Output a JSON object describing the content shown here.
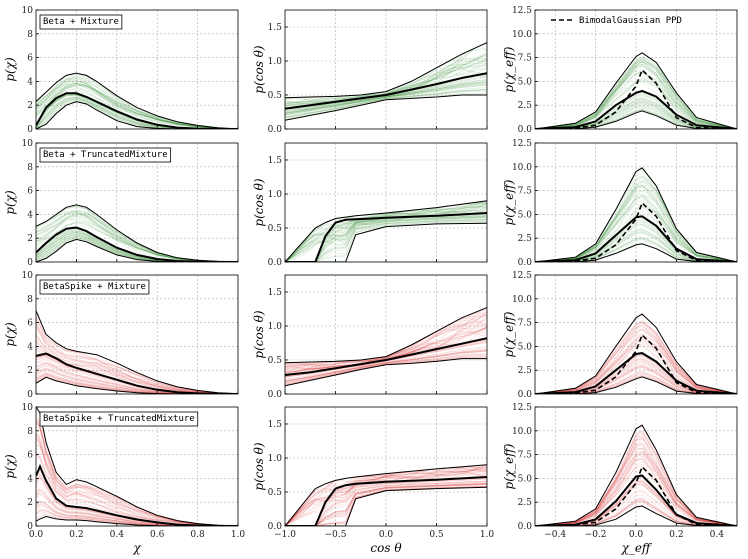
{
  "legend": {
    "label": "BimodalGaussian PPD",
    "style": "dashed",
    "placement": "top-right"
  },
  "rows": [
    {
      "model": "Beta + Mixture",
      "color": "#2e8b2e",
      "trunc": false,
      "spike": false
    },
    {
      "model": "Beta + TruncatedMixture",
      "color": "#2e8b2e",
      "trunc": true,
      "spike": false
    },
    {
      "model": "BetaSpike + Mixture",
      "color": "#d62728",
      "trunc": false,
      "spike": true
    },
    {
      "model": "BetaSpike + TruncatedMixture",
      "color": "#d62728",
      "trunc": true,
      "spike": true
    }
  ],
  "columns": [
    {
      "key": "chi",
      "ylabel": "p(χ)",
      "xlabel": "χ",
      "xlim": [
        0,
        1.0
      ],
      "ylim": [
        0,
        10
      ],
      "xticks": [
        "0.0",
        "0.2",
        "0.4",
        "0.6",
        "0.8",
        "1.0"
      ],
      "yticks": [
        "0",
        "2",
        "4",
        "6",
        "8",
        "10"
      ]
    },
    {
      "key": "cos",
      "ylabel": "p(cos θ)",
      "xlabel": "cos θ",
      "xlim": [
        -1.0,
        1.0
      ],
      "ylim": [
        0,
        1.75
      ],
      "xticks": [
        "−1.0",
        "−0.5",
        "0.0",
        "0.5",
        "1.0"
      ],
      "yticks": [
        "0.0",
        "0.5",
        "1.0",
        "1.5"
      ]
    },
    {
      "key": "chieff",
      "ylabel": "p(χ_eff)",
      "xlabel": "χ_eff",
      "xlim": [
        -0.5,
        0.5
      ],
      "ylim": [
        0,
        12.5
      ],
      "xticks": [
        "−0.4",
        "−0.2",
        "0.0",
        "0.2",
        "0.4"
      ],
      "yticks": [
        "0.0",
        "2.5",
        "5.0",
        "7.5",
        "10.0",
        "12.5"
      ]
    }
  ],
  "chart_data": [
    {
      "type": "line",
      "row": 0,
      "col": 0,
      "x": [
        0,
        0.05,
        0.1,
        0.15,
        0.2,
        0.25,
        0.3,
        0.4,
        0.5,
        0.6,
        0.7,
        0.8,
        0.9,
        1.0
      ],
      "series": [
        {
          "role": "median",
          "values": [
            0.3,
            1.8,
            2.6,
            3.0,
            3.0,
            2.7,
            2.3,
            1.5,
            0.8,
            0.35,
            0.12,
            0.03,
            0.01,
            0
          ]
        },
        {
          "role": "lower",
          "values": [
            0,
            0.4,
            1.3,
            2.0,
            2.3,
            2.1,
            1.6,
            0.7,
            0.2,
            0.05,
            0,
            0,
            0,
            0
          ]
        },
        {
          "role": "upper",
          "values": [
            2.3,
            3.1,
            3.9,
            4.5,
            4.7,
            4.5,
            4.0,
            2.8,
            1.8,
            1.1,
            0.6,
            0.3,
            0.1,
            0
          ]
        }
      ]
    },
    {
      "type": "line",
      "row": 0,
      "col": 1,
      "x": [
        -1.0,
        -0.75,
        -0.5,
        -0.25,
        0.0,
        0.25,
        0.5,
        0.75,
        1.0
      ],
      "series": [
        {
          "role": "median",
          "values": [
            0.3,
            0.35,
            0.4,
            0.45,
            0.5,
            0.58,
            0.66,
            0.75,
            0.82
          ]
        },
        {
          "role": "lower",
          "values": [
            0.13,
            0.2,
            0.27,
            0.35,
            0.43,
            0.45,
            0.47,
            0.5,
            0.5
          ]
        },
        {
          "role": "upper",
          "values": [
            0.46,
            0.47,
            0.48,
            0.5,
            0.55,
            0.7,
            0.9,
            1.1,
            1.27
          ]
        }
      ]
    },
    {
      "type": "line",
      "row": 0,
      "col": 2,
      "x": [
        -0.5,
        -0.3,
        -0.2,
        -0.1,
        0.0,
        0.03,
        0.1,
        0.2,
        0.3,
        0.5
      ],
      "series": [
        {
          "role": "median",
          "values": [
            0,
            0.2,
            0.8,
            2.5,
            3.8,
            4.0,
            3.4,
            1.5,
            0.4,
            0
          ]
        },
        {
          "role": "lower",
          "values": [
            0,
            0,
            0.2,
            0.8,
            1.7,
            1.9,
            1.4,
            0.4,
            0.05,
            0
          ]
        },
        {
          "role": "upper",
          "values": [
            0,
            0.6,
            1.8,
            4.8,
            7.6,
            8.0,
            7.0,
            3.8,
            1.2,
            0
          ]
        },
        {
          "role": "ppd",
          "values": [
            0,
            0.1,
            0.4,
            1.8,
            4.5,
            6.2,
            4.8,
            1.2,
            0.15,
            0
          ]
        }
      ]
    },
    {
      "type": "line",
      "row": 1,
      "col": 0,
      "x": [
        0,
        0.05,
        0.1,
        0.15,
        0.2,
        0.25,
        0.3,
        0.4,
        0.5,
        0.6,
        0.7,
        0.8,
        0.9,
        1.0
      ],
      "series": [
        {
          "role": "median",
          "values": [
            0.8,
            1.6,
            2.3,
            2.8,
            2.9,
            2.6,
            2.1,
            1.2,
            0.6,
            0.25,
            0.08,
            0.02,
            0.01,
            0
          ]
        },
        {
          "role": "lower",
          "values": [
            0,
            0.3,
            0.9,
            1.6,
            1.9,
            1.7,
            1.3,
            0.6,
            0.2,
            0.05,
            0,
            0,
            0,
            0
          ]
        },
        {
          "role": "upper",
          "values": [
            3.0,
            3.4,
            4.0,
            4.6,
            4.8,
            4.6,
            4.0,
            2.7,
            1.6,
            0.8,
            0.35,
            0.15,
            0.05,
            0
          ]
        }
      ]
    },
    {
      "type": "line",
      "row": 1,
      "col": 1,
      "x": [
        -1.0,
        -0.7,
        -0.6,
        -0.5,
        -0.4,
        -0.3,
        0.0,
        0.5,
        1.0
      ],
      "series": [
        {
          "role": "median",
          "values": [
            0,
            0,
            0.38,
            0.58,
            0.62,
            0.63,
            0.65,
            0.68,
            0.72
          ]
        },
        {
          "role": "lower",
          "values": [
            0,
            0,
            0,
            0,
            0,
            0.4,
            0.52,
            0.56,
            0.57
          ]
        },
        {
          "role": "upper",
          "values": [
            0,
            0.5,
            0.58,
            0.64,
            0.66,
            0.68,
            0.72,
            0.8,
            0.9
          ]
        }
      ]
    },
    {
      "type": "line",
      "row": 1,
      "col": 2,
      "x": [
        -0.5,
        -0.3,
        -0.2,
        -0.1,
        0.0,
        0.03,
        0.1,
        0.2,
        0.3,
        0.5
      ],
      "series": [
        {
          "role": "median",
          "values": [
            0,
            0.2,
            0.9,
            2.8,
            4.7,
            4.8,
            3.8,
            1.4,
            0.3,
            0
          ]
        },
        {
          "role": "lower",
          "values": [
            0,
            0,
            0.2,
            0.9,
            1.8,
            1.9,
            1.4,
            0.3,
            0.05,
            0
          ]
        },
        {
          "role": "upper",
          "values": [
            0,
            0.5,
            1.9,
            5.5,
            9.5,
            9.9,
            8.0,
            3.5,
            1.0,
            0
          ]
        },
        {
          "role": "ppd",
          "values": [
            0,
            0.1,
            0.4,
            1.8,
            4.5,
            6.2,
            4.8,
            1.2,
            0.15,
            0
          ]
        }
      ]
    },
    {
      "type": "line",
      "row": 2,
      "col": 0,
      "x": [
        0,
        0.05,
        0.1,
        0.15,
        0.2,
        0.3,
        0.4,
        0.5,
        0.6,
        0.7,
        0.8,
        0.9,
        1.0
      ],
      "series": [
        {
          "role": "median",
          "values": [
            3.2,
            3.4,
            3.0,
            2.5,
            2.2,
            1.7,
            1.2,
            0.7,
            0.35,
            0.15,
            0.05,
            0.02,
            0
          ]
        },
        {
          "role": "lower",
          "values": [
            0.9,
            1.4,
            1.1,
            0.9,
            0.7,
            0.45,
            0.25,
            0.1,
            0.03,
            0,
            0,
            0,
            0
          ]
        },
        {
          "role": "upper",
          "values": [
            7.0,
            5.0,
            4.3,
            3.8,
            3.6,
            3.3,
            2.6,
            1.8,
            1.1,
            0.6,
            0.3,
            0.1,
            0.02
          ]
        }
      ]
    },
    {
      "type": "line",
      "row": 2,
      "col": 1,
      "x": [
        -1.0,
        -0.75,
        -0.5,
        -0.25,
        0.0,
        0.25,
        0.5,
        0.75,
        1.0
      ],
      "series": [
        {
          "role": "median",
          "values": [
            0.28,
            0.32,
            0.38,
            0.44,
            0.5,
            0.58,
            0.66,
            0.74,
            0.82
          ]
        },
        {
          "role": "lower",
          "values": [
            0.12,
            0.2,
            0.28,
            0.36,
            0.43,
            0.45,
            0.48,
            0.52,
            0.52
          ]
        },
        {
          "role": "upper",
          "values": [
            0.46,
            0.47,
            0.48,
            0.5,
            0.55,
            0.72,
            0.92,
            1.12,
            1.27
          ]
        }
      ]
    },
    {
      "type": "line",
      "row": 2,
      "col": 2,
      "x": [
        -0.5,
        -0.3,
        -0.2,
        -0.1,
        0.0,
        0.03,
        0.1,
        0.2,
        0.3,
        0.5
      ],
      "series": [
        {
          "role": "median",
          "values": [
            0,
            0.2,
            0.8,
            2.5,
            4.2,
            4.3,
            3.4,
            1.4,
            0.35,
            0
          ]
        },
        {
          "role": "lower",
          "values": [
            0,
            0,
            0.15,
            0.7,
            1.6,
            1.8,
            1.3,
            0.3,
            0.05,
            0
          ]
        },
        {
          "role": "upper",
          "values": [
            0,
            0.6,
            1.9,
            5.0,
            8.0,
            8.4,
            7.0,
            3.4,
            1.0,
            0
          ]
        },
        {
          "role": "ppd",
          "values": [
            0,
            0.1,
            0.4,
            1.8,
            4.5,
            6.2,
            4.8,
            1.2,
            0.15,
            0
          ]
        }
      ]
    },
    {
      "type": "line",
      "row": 3,
      "col": 0,
      "x": [
        0,
        0.02,
        0.05,
        0.1,
        0.15,
        0.2,
        0.25,
        0.3,
        0.4,
        0.5,
        0.6,
        0.7,
        0.8,
        0.9,
        1.0
      ],
      "series": [
        {
          "role": "median",
          "values": [
            4.2,
            5.0,
            3.8,
            2.3,
            1.7,
            1.6,
            1.5,
            1.3,
            0.9,
            0.55,
            0.3,
            0.12,
            0.04,
            0.01,
            0
          ]
        },
        {
          "role": "lower",
          "values": [
            0.4,
            0.6,
            0.8,
            0.6,
            0.5,
            0.5,
            0.45,
            0.35,
            0.2,
            0.08,
            0.02,
            0,
            0,
            0,
            0
          ]
        },
        {
          "role": "upper",
          "values": [
            10.0,
            9.5,
            7.0,
            4.5,
            3.5,
            3.9,
            3.7,
            3.3,
            2.5,
            1.6,
            0.9,
            0.45,
            0.2,
            0.06,
            0
          ]
        }
      ]
    },
    {
      "type": "line",
      "row": 3,
      "col": 1,
      "x": [
        -1.0,
        -0.7,
        -0.6,
        -0.5,
        -0.4,
        -0.3,
        0.0,
        0.5,
        1.0
      ],
      "series": [
        {
          "role": "median",
          "values": [
            0,
            0,
            0.35,
            0.55,
            0.6,
            0.62,
            0.65,
            0.68,
            0.72
          ]
        },
        {
          "role": "lower",
          "values": [
            0,
            0,
            0,
            0,
            0,
            0.4,
            0.52,
            0.55,
            0.57
          ]
        },
        {
          "role": "upper",
          "values": [
            0,
            0.55,
            0.62,
            0.67,
            0.7,
            0.72,
            0.77,
            0.84,
            0.9
          ]
        }
      ]
    },
    {
      "type": "line",
      "row": 3,
      "col": 2,
      "x": [
        -0.5,
        -0.3,
        -0.2,
        -0.1,
        0.0,
        0.03,
        0.1,
        0.2,
        0.3,
        0.5
      ],
      "series": [
        {
          "role": "median",
          "values": [
            0,
            0.15,
            0.7,
            2.6,
            5.2,
            5.3,
            3.8,
            1.2,
            0.3,
            0
          ]
        },
        {
          "role": "lower",
          "values": [
            0,
            0,
            0.1,
            0.7,
            2.0,
            2.1,
            1.3,
            0.3,
            0.05,
            0
          ]
        },
        {
          "role": "upper",
          "values": [
            0,
            0.5,
            1.8,
            5.6,
            10.2,
            10.6,
            8.0,
            3.3,
            0.9,
            0
          ]
        },
        {
          "role": "ppd",
          "values": [
            0,
            0.1,
            0.4,
            1.8,
            4.5,
            6.2,
            4.8,
            1.2,
            0.15,
            0
          ]
        }
      ]
    }
  ]
}
